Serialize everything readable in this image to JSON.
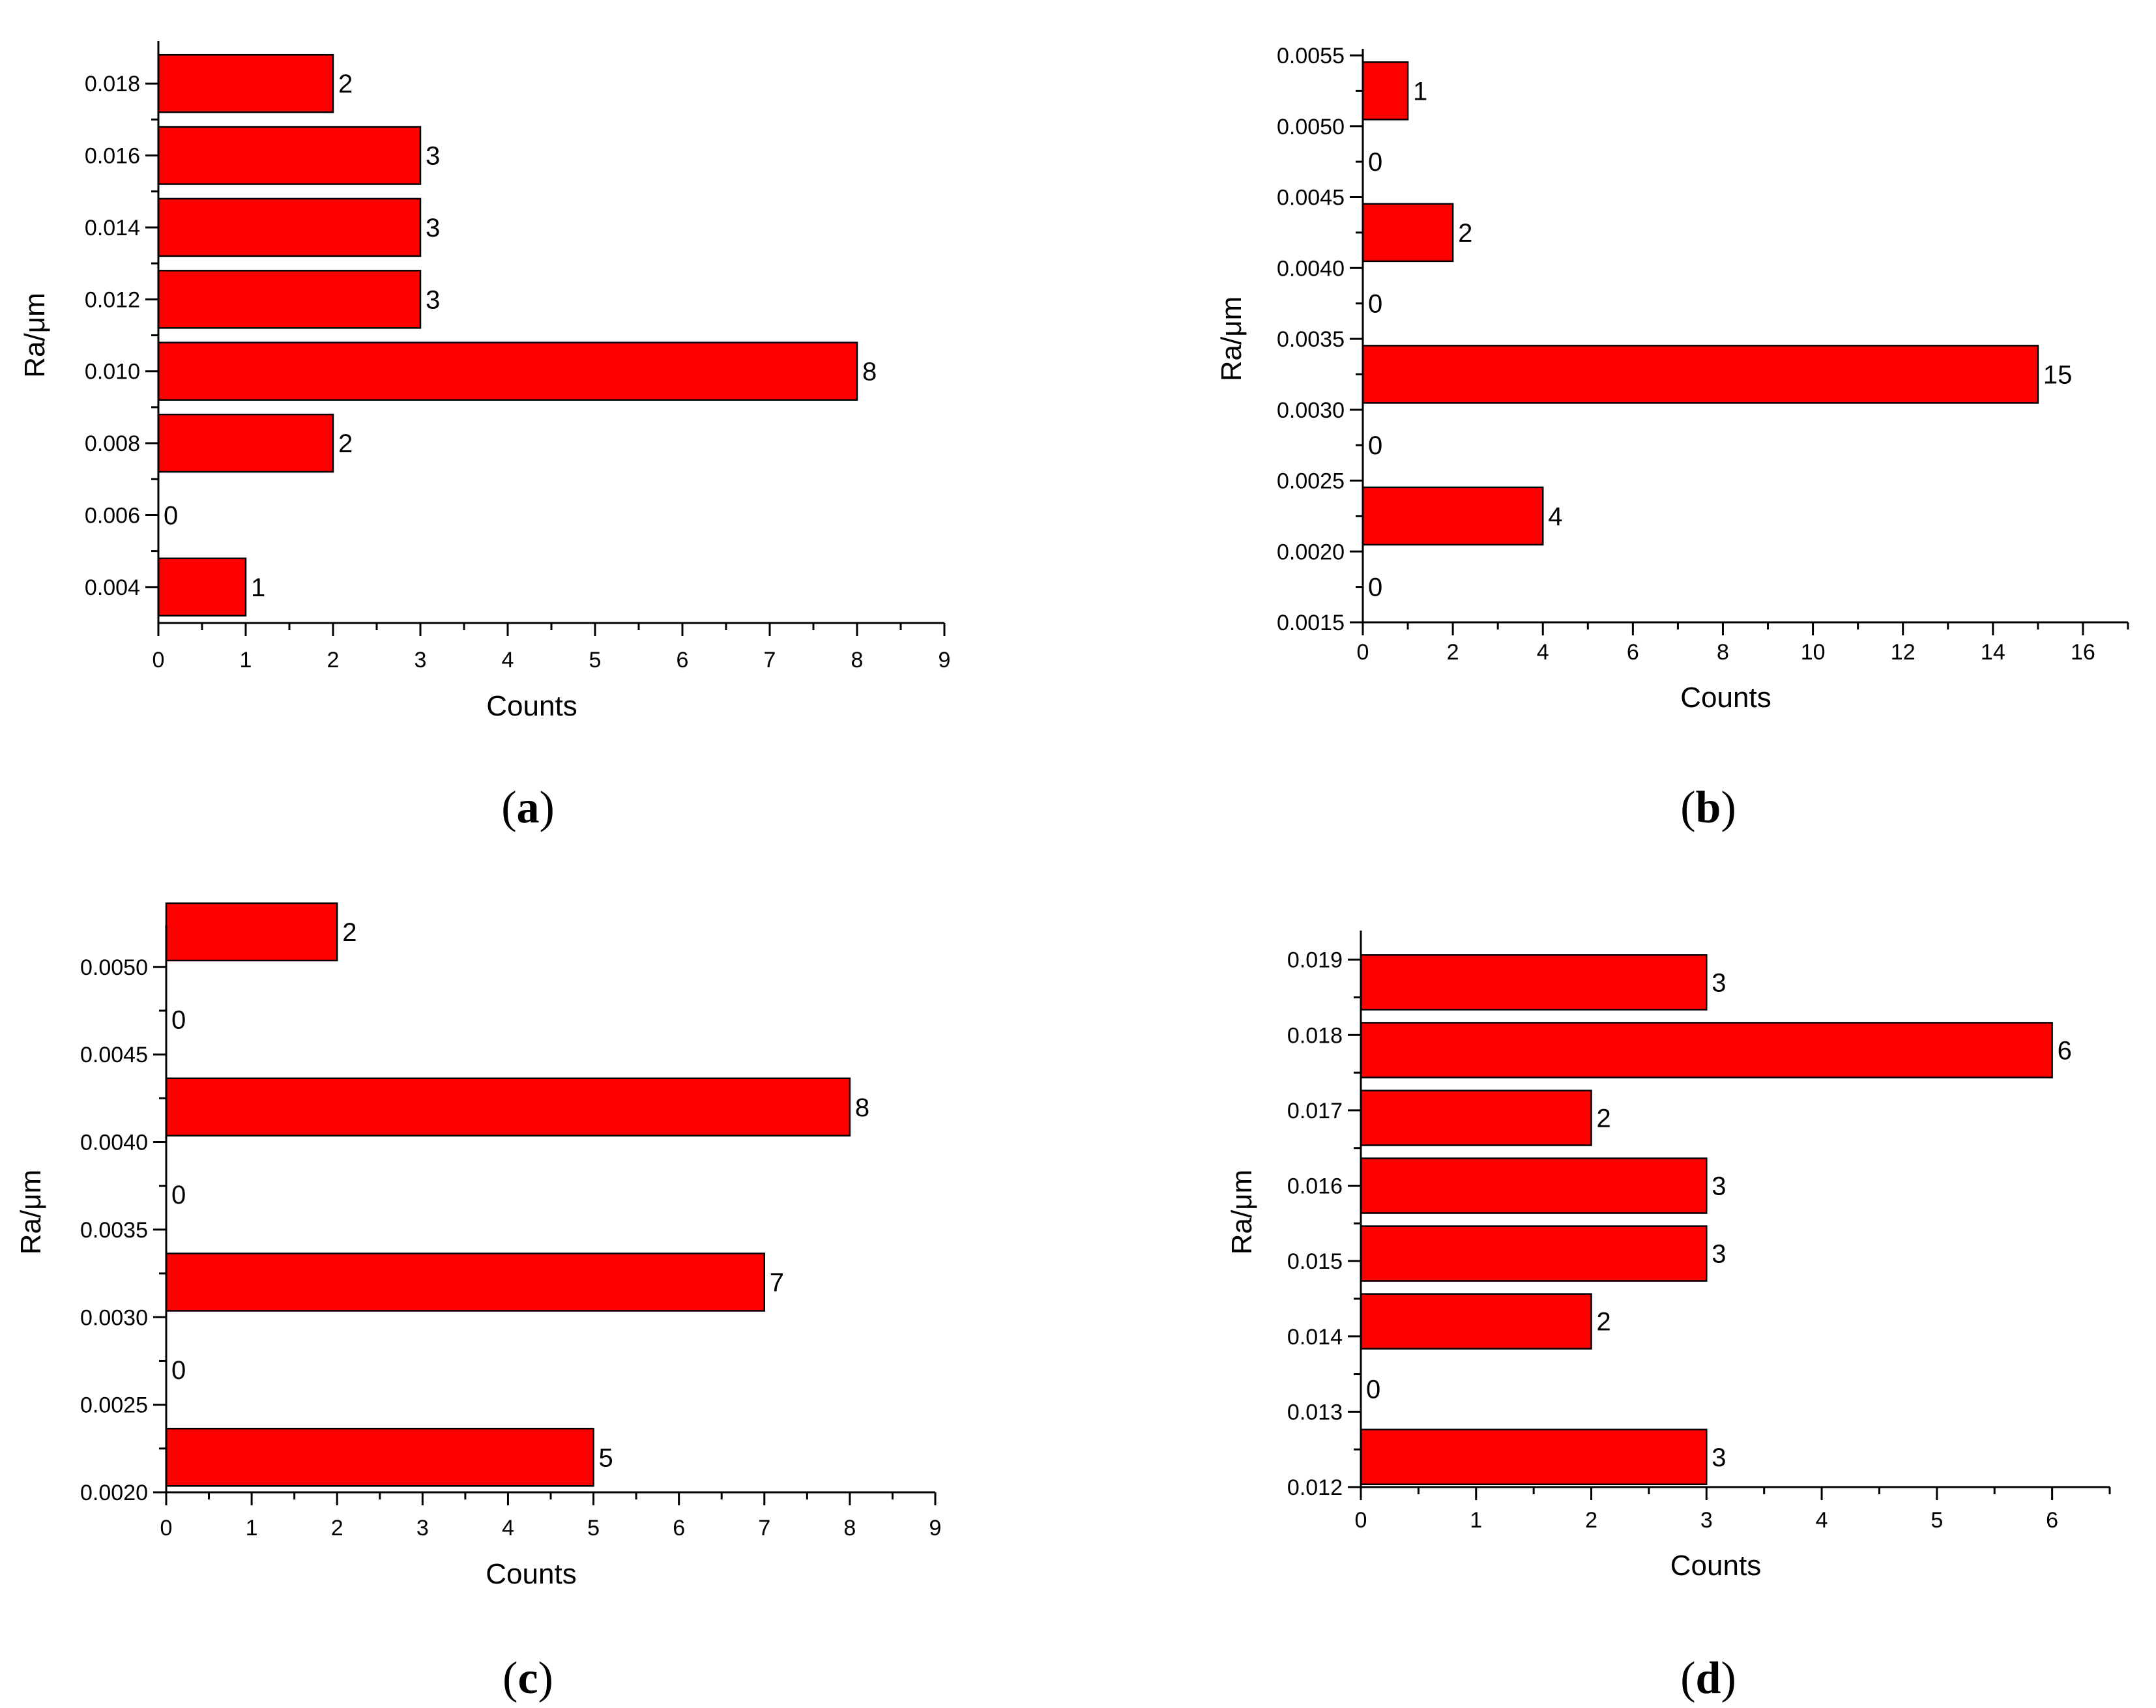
{
  "colors": {
    "bar": "#ff0000",
    "axis": "#000000"
  },
  "chart_data": [
    {
      "type": "bar",
      "orientation": "horizontal",
      "panel_label": "a",
      "xlabel": "Counts",
      "ylabel": "Ra/μm",
      "xlim": [
        0,
        9
      ],
      "ylim": [
        0.003,
        0.019
      ],
      "x_ticks": [
        "0",
        "1",
        "2",
        "3",
        "4",
        "5",
        "6",
        "7",
        "8",
        "9"
      ],
      "y_ticks": [
        "0.004",
        "0.006",
        "0.008",
        "0.010",
        "0.012",
        "0.014",
        "0.016",
        "0.018"
      ],
      "categories": [
        0.004,
        0.006,
        0.008,
        0.01,
        0.012,
        0.014,
        0.016,
        0.018
      ],
      "values": [
        1,
        0,
        2,
        8,
        3,
        3,
        3,
        2
      ],
      "grid": false
    },
    {
      "type": "bar",
      "orientation": "horizontal",
      "panel_label": "b",
      "xlabel": "Counts",
      "ylabel": "Ra/μm",
      "xlim": [
        0,
        17
      ],
      "ylim": [
        0.0015,
        0.0055
      ],
      "x_ticks": [
        "0",
        "2",
        "4",
        "6",
        "8",
        "10",
        "12",
        "14",
        "16"
      ],
      "y_ticks": [
        "0.0015",
        "0.0020",
        "0.0025",
        "0.0030",
        "0.0035",
        "0.0040",
        "0.0045",
        "0.0050",
        "0.0055"
      ],
      "categories": [
        0.00175,
        0.00225,
        0.00275,
        0.00325,
        0.00375,
        0.00425,
        0.00475,
        0.00525
      ],
      "values": [
        0,
        4,
        0,
        15,
        0,
        2,
        0,
        1
      ],
      "grid": false
    },
    {
      "type": "bar",
      "orientation": "horizontal",
      "panel_label": "c",
      "xlabel": "Counts",
      "ylabel": "Ra/μm",
      "xlim": [
        0,
        9
      ],
      "ylim": [
        0.002,
        0.0052
      ],
      "x_ticks": [
        "0",
        "1",
        "2",
        "3",
        "4",
        "5",
        "6",
        "7",
        "8",
        "9"
      ],
      "y_ticks": [
        "0.0020",
        "0.0025",
        "0.0030",
        "0.0035",
        "0.0040",
        "0.0045",
        "0.0050"
      ],
      "categories": [
        0.0022,
        0.0027,
        0.0032,
        0.0037,
        0.0042,
        0.0047,
        0.0052
      ],
      "values": [
        5,
        0,
        7,
        0,
        8,
        0,
        2
      ],
      "grid": false
    },
    {
      "type": "bar",
      "orientation": "horizontal",
      "panel_label": "d",
      "xlabel": "Counts",
      "ylabel": "Ra/μm",
      "xlim": [
        0,
        6.5
      ],
      "ylim": [
        0.012,
        0.0193
      ],
      "x_ticks": [
        "0",
        "1",
        "2",
        "3",
        "4",
        "5",
        "6"
      ],
      "y_ticks": [
        "0.012",
        "0.013",
        "0.014",
        "0.015",
        "0.016",
        "0.017",
        "0.018",
        "0.019"
      ],
      "categories": [
        0.0124,
        0.0133,
        0.0142,
        0.0151,
        0.016,
        0.0169,
        0.0178,
        0.0187
      ],
      "values": [
        3,
        0,
        2,
        3,
        3,
        2,
        6,
        3
      ],
      "grid": false
    }
  ]
}
